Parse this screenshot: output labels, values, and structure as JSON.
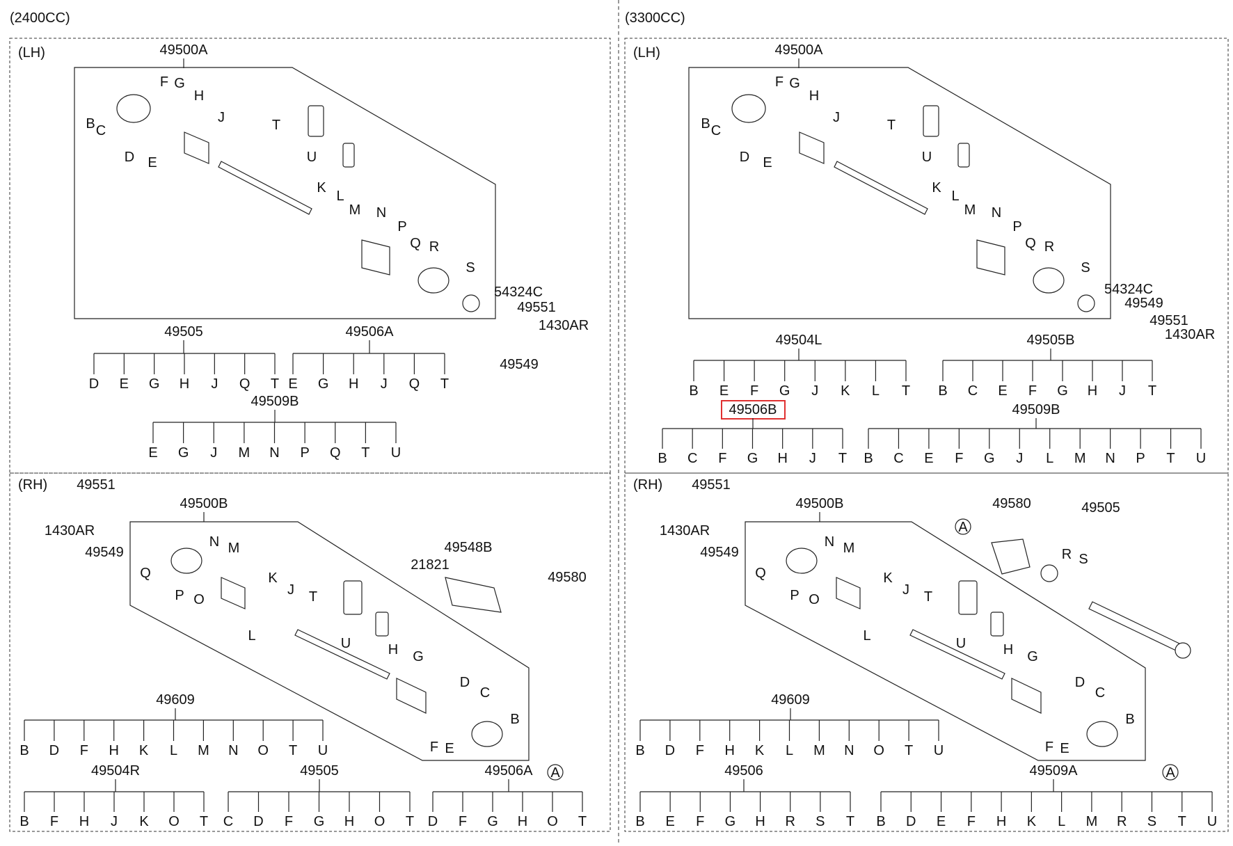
{
  "sections": {
    "left_title": "(2400CC)",
    "right_title": "(3300CC)",
    "lh": "(LH)",
    "rh": "(RH)"
  },
  "circle_ref": "A",
  "highlight_color": "#e03030",
  "panels": {
    "p2400_lh": {
      "assembly": "49500A",
      "parts": [
        "B",
        "C",
        "D",
        "E",
        "F",
        "G",
        "H",
        "J",
        "T",
        "U",
        "K",
        "L",
        "M",
        "N",
        "P",
        "Q",
        "R",
        "S"
      ],
      "extras": [
        "54324C",
        "49551",
        "1430AR",
        "49549"
      ],
      "trees": [
        {
          "root": "49505",
          "children": [
            "D",
            "E",
            "G",
            "H",
            "J",
            "Q",
            "T"
          ]
        },
        {
          "root": "49506A",
          "children": [
            "E",
            "G",
            "H",
            "J",
            "Q",
            "T"
          ]
        },
        {
          "root": "49509B",
          "children": [
            "E",
            "G",
            "J",
            "M",
            "N",
            "P",
            "Q",
            "T",
            "U"
          ]
        }
      ]
    },
    "p3300_lh": {
      "assembly": "49500A",
      "parts": [
        "B",
        "C",
        "D",
        "E",
        "F",
        "G",
        "H",
        "J",
        "T",
        "U",
        "K",
        "L",
        "M",
        "N",
        "P",
        "Q",
        "R",
        "S"
      ],
      "extras": [
        "54324C",
        "49549",
        "49551",
        "1430AR"
      ],
      "trees": [
        {
          "root": "49504L",
          "children": [
            "B",
            "E",
            "F",
            "G",
            "J",
            "K",
            "L",
            "T"
          ]
        },
        {
          "root": "49505B",
          "children": [
            "B",
            "C",
            "E",
            "F",
            "G",
            "H",
            "J",
            "T"
          ]
        },
        {
          "root": "49506B",
          "children": [
            "B",
            "C",
            "F",
            "G",
            "H",
            "J",
            "T"
          ],
          "highlight": true
        },
        {
          "root": "49509B",
          "children": [
            "B",
            "C",
            "E",
            "F",
            "G",
            "J",
            "L",
            "M",
            "N",
            "P",
            "T",
            "U"
          ]
        }
      ]
    },
    "p2400_rh": {
      "assembly": "49500B",
      "parts": [
        "Q",
        "P",
        "O",
        "N",
        "M",
        "L",
        "K",
        "J",
        "T",
        "U",
        "H",
        "G",
        "F",
        "E",
        "D",
        "C",
        "B"
      ],
      "extras": [
        "49551",
        "1430AR",
        "49549",
        "49548B",
        "21821",
        "49580"
      ],
      "trees": [
        {
          "root": "49609",
          "children": [
            "B",
            "D",
            "F",
            "H",
            "K",
            "L",
            "M",
            "N",
            "O",
            "T",
            "U"
          ]
        },
        {
          "root": "49504R",
          "children": [
            "B",
            "F",
            "H",
            "J",
            "K",
            "O",
            "T"
          ]
        },
        {
          "root": "49505",
          "children": [
            "C",
            "D",
            "F",
            "G",
            "H",
            "O",
            "T"
          ]
        },
        {
          "root": "49506A",
          "children": [
            "D",
            "F",
            "G",
            "H",
            "O",
            "T"
          ]
        }
      ]
    },
    "p3300_rh": {
      "assembly": "49500B",
      "parts": [
        "Q",
        "P",
        "O",
        "N",
        "M",
        "L",
        "K",
        "J",
        "T",
        "U",
        "H",
        "G",
        "F",
        "E",
        "D",
        "C",
        "B"
      ],
      "extras": [
        "49551",
        "1430AR",
        "49549",
        "49580",
        "49505",
        "R",
        "S"
      ],
      "trees": [
        {
          "root": "49609",
          "children": [
            "B",
            "D",
            "F",
            "H",
            "K",
            "L",
            "M",
            "N",
            "O",
            "T",
            "U"
          ]
        },
        {
          "root": "49506",
          "children": [
            "B",
            "E",
            "F",
            "G",
            "H",
            "R",
            "S",
            "T"
          ]
        },
        {
          "root": "49509A",
          "children": [
            "B",
            "D",
            "E",
            "F",
            "H",
            "K",
            "L",
            "M",
            "R",
            "S",
            "T",
            "U"
          ]
        }
      ]
    }
  }
}
